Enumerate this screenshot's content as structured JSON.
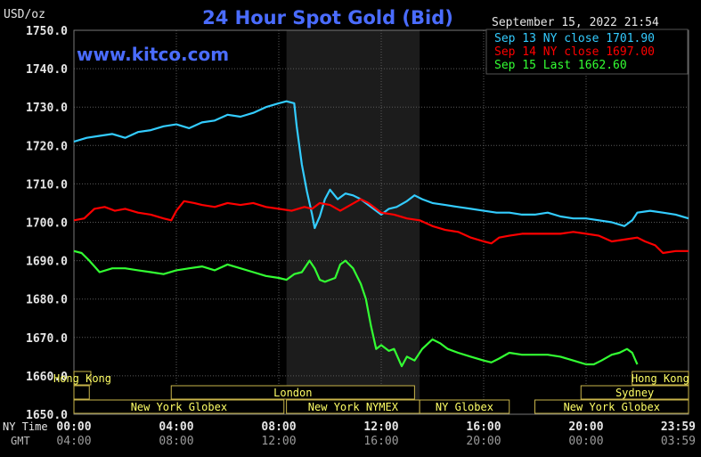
{
  "header": {
    "title": "24 Hour Spot Gold (Bid)",
    "unit": "USD/oz",
    "date": "September 15, 2022 21:54",
    "watermark": "www.kitco.com"
  },
  "axis_labels": {
    "ny_time": "NY Time",
    "gmt": "GMT"
  },
  "colors": {
    "sep13": "#33ccff",
    "sep14": "#ff0000",
    "sep15": "#33ff33",
    "title": "#4a6cff",
    "grid": "#5a5a5a",
    "session_border": "#c8b44a",
    "session_text": "#ffff66",
    "highlight": "#1c1c1c"
  },
  "sessions": [
    {
      "label": "Hong Kong",
      "row": 0,
      "x0": 0.0,
      "x1": 0.66
    },
    {
      "label": "Hong Kong",
      "row": 0,
      "x0": 21.8,
      "x1": 24.0
    },
    {
      "label": "London",
      "row": 1,
      "x0": 3.8,
      "x1": 13.3
    },
    {
      "label": "Sydney",
      "row": 1,
      "x0": 19.8,
      "x1": 24.0
    },
    {
      "label": "",
      "row": 1,
      "x0": 0.0,
      "x1": 0.6
    },
    {
      "label": "New York Globex",
      "row": 2,
      "x0": 0.0,
      "x1": 8.2
    },
    {
      "label": "New York NYMEX",
      "row": 2,
      "x0": 8.3,
      "x1": 13.5
    },
    {
      "label": "NY Globex",
      "row": 2,
      "x0": 13.5,
      "x1": 17.0
    },
    {
      "label": "New York Globex",
      "row": 2,
      "x0": 18.0,
      "x1": 24.0
    }
  ],
  "chart_data": {
    "type": "line",
    "title": "24 Hour Spot Gold (Bid)",
    "ylabel": "USD/oz",
    "ylim": [
      1650,
      1750
    ],
    "xlim": [
      0,
      24
    ],
    "yticks": [
      "1650.0",
      "1660.0",
      "1670.0",
      "1680.0",
      "1690.0",
      "1700.0",
      "1710.0",
      "1720.0",
      "1730.0",
      "1740.0",
      "1750.0"
    ],
    "yticks_values": [
      1650,
      1660,
      1670,
      1680,
      1690,
      1700,
      1710,
      1720,
      1730,
      1740,
      1750
    ],
    "xticks_values": [
      0,
      4,
      8,
      12,
      16,
      20,
      24
    ],
    "xticks_ny": [
      "00:00",
      "04:00",
      "08:00",
      "12:00",
      "16:00",
      "20:00",
      "23:59"
    ],
    "xticks_gmt": [
      "04:00",
      "08:00",
      "12:00",
      "16:00",
      "20:00",
      "00:00",
      "03:59"
    ],
    "highlight_range": [
      8.3,
      13.5
    ],
    "legend_position": "top-right",
    "series": [
      {
        "name": "Sep 13 NY close 1701.90",
        "color": "#33ccff",
        "points": [
          [
            0.0,
            1721.0
          ],
          [
            0.5,
            1722.0
          ],
          [
            1.0,
            1722.5
          ],
          [
            1.5,
            1723.0
          ],
          [
            2.0,
            1722.0
          ],
          [
            2.5,
            1723.5
          ],
          [
            3.0,
            1724.0
          ],
          [
            3.5,
            1725.0
          ],
          [
            4.0,
            1725.5
          ],
          [
            4.5,
            1724.5
          ],
          [
            5.0,
            1726.0
          ],
          [
            5.5,
            1726.5
          ],
          [
            6.0,
            1728.0
          ],
          [
            6.5,
            1727.5
          ],
          [
            7.0,
            1728.5
          ],
          [
            7.5,
            1730.0
          ],
          [
            8.0,
            1731.0
          ],
          [
            8.3,
            1731.5
          ],
          [
            8.6,
            1731.0
          ],
          [
            8.7,
            1725.0
          ],
          [
            8.9,
            1715.0
          ],
          [
            9.1,
            1708.0
          ],
          [
            9.3,
            1702.0
          ],
          [
            9.4,
            1698.5
          ],
          [
            9.6,
            1701.5
          ],
          [
            9.8,
            1706.0
          ],
          [
            10.0,
            1708.5
          ],
          [
            10.3,
            1706.0
          ],
          [
            10.6,
            1707.5
          ],
          [
            10.9,
            1707.0
          ],
          [
            11.2,
            1706.0
          ],
          [
            11.5,
            1704.5
          ],
          [
            11.8,
            1703.0
          ],
          [
            12.0,
            1702.0
          ],
          [
            12.3,
            1703.5
          ],
          [
            12.6,
            1704.0
          ],
          [
            13.0,
            1705.5
          ],
          [
            13.3,
            1707.0
          ],
          [
            13.6,
            1706.0
          ],
          [
            14.0,
            1705.0
          ],
          [
            14.5,
            1704.5
          ],
          [
            15.0,
            1704.0
          ],
          [
            15.5,
            1703.5
          ],
          [
            16.0,
            1703.0
          ],
          [
            16.5,
            1702.5
          ],
          [
            17.0,
            1702.5
          ],
          [
            17.5,
            1702.0
          ],
          [
            18.0,
            1702.0
          ],
          [
            18.5,
            1702.5
          ],
          [
            19.0,
            1701.5
          ],
          [
            19.5,
            1701.0
          ],
          [
            20.0,
            1701.0
          ],
          [
            20.5,
            1700.5
          ],
          [
            21.0,
            1700.0
          ],
          [
            21.5,
            1699.0
          ],
          [
            21.8,
            1700.5
          ],
          [
            22.0,
            1702.5
          ],
          [
            22.5,
            1703.0
          ],
          [
            23.0,
            1702.5
          ],
          [
            23.5,
            1702.0
          ],
          [
            24.0,
            1701.0
          ]
        ]
      },
      {
        "name": "Sep 14 NY close 1697.00",
        "color": "#ff0000",
        "points": [
          [
            0.0,
            1700.5
          ],
          [
            0.4,
            1701.0
          ],
          [
            0.8,
            1703.5
          ],
          [
            1.2,
            1704.0
          ],
          [
            1.6,
            1703.0
          ],
          [
            2.0,
            1703.5
          ],
          [
            2.5,
            1702.5
          ],
          [
            3.0,
            1702.0
          ],
          [
            3.5,
            1701.0
          ],
          [
            3.8,
            1700.5
          ],
          [
            4.0,
            1703.0
          ],
          [
            4.3,
            1705.5
          ],
          [
            4.7,
            1705.0
          ],
          [
            5.0,
            1704.5
          ],
          [
            5.5,
            1704.0
          ],
          [
            6.0,
            1705.0
          ],
          [
            6.5,
            1704.5
          ],
          [
            7.0,
            1705.0
          ],
          [
            7.5,
            1704.0
          ],
          [
            8.0,
            1703.5
          ],
          [
            8.5,
            1703.0
          ],
          [
            9.0,
            1704.0
          ],
          [
            9.3,
            1703.5
          ],
          [
            9.6,
            1705.0
          ],
          [
            10.0,
            1704.5
          ],
          [
            10.4,
            1703.0
          ],
          [
            10.8,
            1704.5
          ],
          [
            11.2,
            1706.0
          ],
          [
            11.5,
            1705.0
          ],
          [
            11.8,
            1703.5
          ],
          [
            12.0,
            1702.5
          ],
          [
            12.5,
            1702.0
          ],
          [
            13.0,
            1701.0
          ],
          [
            13.5,
            1700.5
          ],
          [
            14.0,
            1699.0
          ],
          [
            14.5,
            1698.0
          ],
          [
            15.0,
            1697.5
          ],
          [
            15.5,
            1696.0
          ],
          [
            16.0,
            1695.0
          ],
          [
            16.3,
            1694.5
          ],
          [
            16.6,
            1696.0
          ],
          [
            17.0,
            1696.5
          ],
          [
            17.5,
            1697.0
          ],
          [
            18.0,
            1697.0
          ],
          [
            18.5,
            1697.0
          ],
          [
            19.0,
            1697.0
          ],
          [
            19.5,
            1697.5
          ],
          [
            20.0,
            1697.0
          ],
          [
            20.5,
            1696.5
          ],
          [
            21.0,
            1695.0
          ],
          [
            21.5,
            1695.5
          ],
          [
            22.0,
            1696.0
          ],
          [
            22.3,
            1695.0
          ],
          [
            22.7,
            1694.0
          ],
          [
            23.0,
            1692.0
          ],
          [
            23.5,
            1692.5
          ],
          [
            24.0,
            1692.5
          ]
        ]
      },
      {
        "name": "Sep 15 Last 1662.60",
        "color": "#33ff33",
        "points": [
          [
            0.0,
            1692.5
          ],
          [
            0.3,
            1692.0
          ],
          [
            0.6,
            1690.0
          ],
          [
            1.0,
            1687.0
          ],
          [
            1.5,
            1688.0
          ],
          [
            2.0,
            1688.0
          ],
          [
            2.5,
            1687.5
          ],
          [
            3.0,
            1687.0
          ],
          [
            3.5,
            1686.5
          ],
          [
            4.0,
            1687.5
          ],
          [
            4.5,
            1688.0
          ],
          [
            5.0,
            1688.5
          ],
          [
            5.5,
            1687.5
          ],
          [
            6.0,
            1689.0
          ],
          [
            6.5,
            1688.0
          ],
          [
            7.0,
            1687.0
          ],
          [
            7.5,
            1686.0
          ],
          [
            8.0,
            1685.5
          ],
          [
            8.3,
            1685.0
          ],
          [
            8.6,
            1686.5
          ],
          [
            8.9,
            1687.0
          ],
          [
            9.2,
            1690.0
          ],
          [
            9.4,
            1688.0
          ],
          [
            9.6,
            1685.0
          ],
          [
            9.8,
            1684.5
          ],
          [
            10.0,
            1685.0
          ],
          [
            10.2,
            1685.5
          ],
          [
            10.4,
            1689.0
          ],
          [
            10.6,
            1690.0
          ],
          [
            10.9,
            1688.0
          ],
          [
            11.2,
            1684.0
          ],
          [
            11.4,
            1680.0
          ],
          [
            11.6,
            1673.0
          ],
          [
            11.8,
            1667.0
          ],
          [
            12.0,
            1668.0
          ],
          [
            12.3,
            1666.5
          ],
          [
            12.5,
            1667.0
          ],
          [
            12.8,
            1662.5
          ],
          [
            13.0,
            1665.0
          ],
          [
            13.3,
            1664.0
          ],
          [
            13.6,
            1667.0
          ],
          [
            14.0,
            1669.5
          ],
          [
            14.3,
            1668.5
          ],
          [
            14.6,
            1667.0
          ],
          [
            15.0,
            1666.0
          ],
          [
            15.5,
            1665.0
          ],
          [
            16.0,
            1664.0
          ],
          [
            16.3,
            1663.5
          ],
          [
            16.6,
            1664.5
          ],
          [
            17.0,
            1666.0
          ],
          [
            17.5,
            1665.5
          ],
          [
            18.0,
            1665.5
          ],
          [
            18.5,
            1665.5
          ],
          [
            19.0,
            1665.0
          ],
          [
            19.5,
            1664.0
          ],
          [
            20.0,
            1663.0
          ],
          [
            20.3,
            1663.0
          ],
          [
            20.6,
            1664.0
          ],
          [
            21.0,
            1665.5
          ],
          [
            21.3,
            1666.0
          ],
          [
            21.6,
            1667.0
          ],
          [
            21.8,
            1666.0
          ],
          [
            21.9,
            1664.5
          ],
          [
            22.0,
            1663.0
          ]
        ]
      }
    ]
  }
}
